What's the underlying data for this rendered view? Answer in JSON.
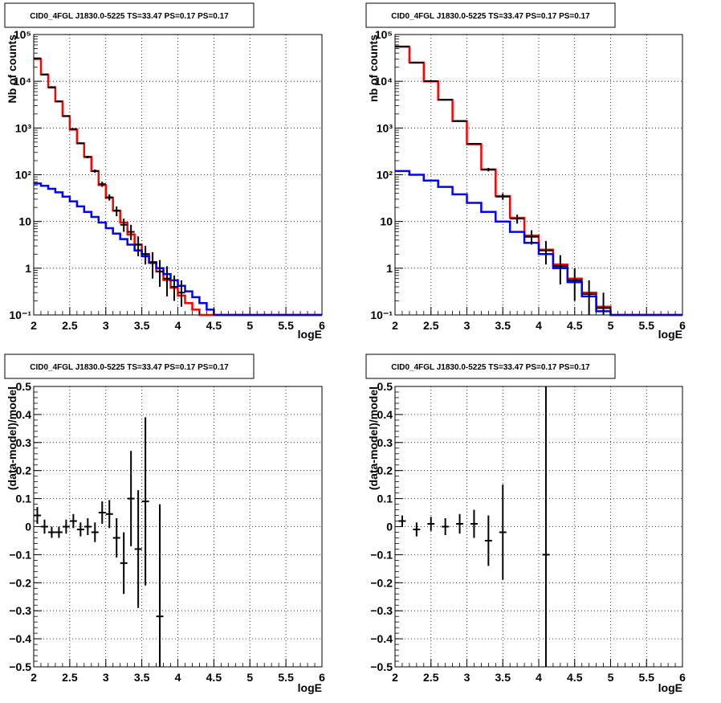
{
  "chart_data": [
    {
      "type": "line",
      "title": "CID0_4FGL J1830.0-5225 TS=33.47 PS=0.17 PS=0.17",
      "xlabel": "logE",
      "ylabel": "Nb of counts",
      "xlim": [
        2,
        6
      ],
      "ylim": [
        0.1,
        100000
      ],
      "yscale": "log",
      "grid": true,
      "xticks": [
        "2",
        "2.5",
        "3",
        "3.5",
        "4",
        "4.5",
        "5",
        "5.5",
        "6"
      ],
      "yticks": [
        "10⁻¹",
        "1",
        "10",
        "10²",
        "10³",
        "10⁴",
        "10⁵"
      ],
      "x_edges": [
        2.0,
        2.1,
        2.2,
        2.3,
        2.4,
        2.5,
        2.6,
        2.7,
        2.8,
        2.9,
        3.0,
        3.1,
        3.2,
        3.3,
        3.4,
        3.5,
        3.6,
        3.7,
        3.8,
        3.9,
        4.0,
        4.1,
        4.2,
        4.3,
        4.4,
        4.5,
        4.6,
        4.7,
        4.8,
        4.9,
        5.0,
        5.1,
        5.2,
        5.3,
        5.4,
        5.5,
        5.6,
        5.7,
        5.8,
        5.9,
        6.0
      ],
      "series": [
        {
          "color": "#ff0000",
          "values": [
            30000,
            14000,
            7500,
            3700,
            1800,
            930,
            470,
            240,
            120,
            60,
            32,
            17,
            9.5,
            5.3,
            3.2,
            2.0,
            1.3,
            0.85,
            0.56,
            0.38,
            0.26,
            0.18,
            0.13,
            0.1,
            0.1,
            0.1,
            0.1,
            0.1,
            0.1,
            0.1,
            0.1,
            0.1,
            0.1,
            0.1,
            0.1,
            0.1,
            0.1,
            0.1,
            0.1,
            0.1
          ]
        },
        {
          "color": "#0000ff",
          "values": [
            65,
            58,
            50,
            42,
            34,
            27,
            21,
            16,
            12.5,
            9.5,
            7.2,
            5.5,
            4.2,
            3.2,
            2.4,
            1.8,
            1.35,
            1.0,
            0.75,
            0.55,
            0.42,
            0.32,
            0.24,
            0.18,
            0.13,
            0.1,
            0.1,
            0.1,
            0.1,
            0.1,
            0.1,
            0.1,
            0.1,
            0.1,
            0.1,
            0.1,
            0.1,
            0.1,
            0.1,
            0.1
          ]
        }
      ],
      "points": {
        "color": "#000000",
        "x": [
          2.05,
          2.15,
          2.25,
          2.35,
          2.45,
          2.55,
          2.65,
          2.75,
          2.85,
          2.95,
          3.05,
          3.15,
          3.25,
          3.35,
          3.45,
          3.55,
          3.65,
          3.75,
          3.85,
          3.95,
          4.05
        ],
        "y": [
          31000,
          14000,
          7300,
          3700,
          1800,
          950,
          470,
          240,
          120,
          63,
          33,
          17,
          8.5,
          6.0,
          3.2,
          2.0,
          1.3,
          0.85,
          0.6,
          0.4,
          0.3
        ],
        "y_lo": [
          30000,
          13800,
          7150,
          3640,
          1760,
          920,
          450,
          225,
          110,
          55,
          28,
          13,
          6.0,
          4.0,
          1.8,
          1.2,
          0.6,
          0.4,
          0.25,
          0.2,
          0.15
        ],
        "y_hi": [
          31200,
          14200,
          7450,
          3760,
          1840,
          980,
          490,
          255,
          130,
          71,
          38,
          21,
          11.5,
          8.5,
          4.8,
          3.0,
          2.2,
          1.5,
          1.1,
          0.7,
          0.55
        ]
      }
    },
    {
      "type": "line",
      "title": "CID0_4FGL J1830.0-5225 TS=33.47 PS=0.17 PS=0.17",
      "xlabel": "logE",
      "ylabel": "nb of counts",
      "xlim": [
        2,
        6
      ],
      "ylim": [
        0.1,
        100000
      ],
      "yscale": "log",
      "grid": true,
      "xticks": [
        "2",
        "2.5",
        "3",
        "3.5",
        "4",
        "4.5",
        "5",
        "5.5",
        "6"
      ],
      "yticks": [
        "10⁻¹",
        "1",
        "10",
        "10²",
        "10³",
        "10⁴",
        "10⁵"
      ],
      "x_edges": [
        2.0,
        2.2,
        2.4,
        2.6,
        2.8,
        3.0,
        3.2,
        3.4,
        3.6,
        3.8,
        4.0,
        4.2,
        4.4,
        4.6,
        4.8,
        5.0,
        5.2,
        5.4,
        5.6,
        5.8,
        6.0
      ],
      "series": [
        {
          "color": "#ff0000",
          "values": [
            55000,
            25000,
            10000,
            4000,
            1400,
            450,
            130,
            35,
            12,
            5.0,
            2.5,
            1.2,
            0.6,
            0.3,
            0.15,
            0.1,
            0.1,
            0.1,
            0.1,
            0.1
          ]
        },
        {
          "color": "#0000ff",
          "values": [
            120,
            100,
            75,
            55,
            38,
            25,
            16,
            10,
            6,
            3.5,
            2.0,
            1.0,
            0.5,
            0.25,
            0.12,
            0.1,
            0.1,
            0.1,
            0.1,
            0.1
          ]
        }
      ],
      "points": {
        "color": "#000000",
        "x": [
          2.1,
          2.3,
          2.5,
          2.7,
          2.9,
          3.1,
          3.3,
          3.5,
          3.7,
          3.9,
          4.1,
          4.3,
          4.5,
          4.7,
          4.9
        ],
        "y": [
          55500,
          25200,
          10100,
          4050,
          1420,
          460,
          128,
          34,
          11.5,
          4.7,
          2.4,
          1.1,
          0.55,
          0.28,
          0.14
        ],
        "y_lo": [
          55000,
          24900,
          9950,
          3980,
          1380,
          440,
          118,
          29,
          9,
          3.2,
          1.2,
          0.45,
          0.2,
          0.1,
          0.1
        ],
        "y_hi": [
          56000,
          25500,
          10250,
          4120,
          1460,
          480,
          140,
          40,
          14,
          6.5,
          3.8,
          1.9,
          1.0,
          0.55,
          0.3
        ]
      }
    },
    {
      "type": "scatter",
      "title": "CID0_4FGL J1830.0-5225 TS=33.47 PS=0.17 PS=0.17",
      "xlabel": "logE",
      "ylabel": "(data-model)/model",
      "xlim": [
        2,
        6
      ],
      "ylim": [
        -0.5,
        0.5
      ],
      "grid": true,
      "xticks": [
        "2",
        "2.5",
        "3",
        "3.5",
        "4",
        "4.5",
        "5",
        "5.5",
        "6"
      ],
      "yticks": [
        "−0.5",
        "−0.4",
        "−0.3",
        "−0.2",
        "−0.1",
        "0",
        "0.1",
        "0.2",
        "0.3",
        "0.4",
        "0.5"
      ],
      "points": {
        "color": "#000000",
        "x": [
          2.05,
          2.15,
          2.25,
          2.35,
          2.45,
          2.55,
          2.65,
          2.75,
          2.85,
          2.95,
          3.05,
          3.15,
          3.25,
          3.35,
          3.45,
          3.55,
          3.75
        ],
        "y": [
          0.04,
          0.0,
          -0.02,
          -0.02,
          0.0,
          0.02,
          -0.01,
          0.0,
          -0.02,
          0.05,
          0.045,
          -0.04,
          -0.13,
          0.1,
          -0.08,
          0.09,
          -0.32
        ],
        "y_err": [
          0.03,
          0.025,
          0.02,
          0.02,
          0.025,
          0.025,
          0.025,
          0.03,
          0.035,
          0.04,
          0.05,
          0.07,
          0.11,
          0.17,
          0.21,
          0.3,
          0.4
        ]
      }
    },
    {
      "type": "scatter",
      "title": "CID0_4FGL J1830.0-5225 TS=33.47 PS=0.17 PS=0.17",
      "xlabel": "logE",
      "ylabel": "(data-model)/model",
      "xlim": [
        2,
        6
      ],
      "ylim": [
        -0.5,
        0.5
      ],
      "grid": true,
      "xticks": [
        "2",
        "2.5",
        "3",
        "3.5",
        "4",
        "4.5",
        "5",
        "5.5",
        "6"
      ],
      "yticks": [
        "−0.5",
        "−0.4",
        "−0.3",
        "−0.2",
        "−0.1",
        "0",
        "0.1",
        "0.2",
        "0.3",
        "0.4",
        "0.5"
      ],
      "points": {
        "color": "#000000",
        "x": [
          2.1,
          2.3,
          2.5,
          2.7,
          2.9,
          3.1,
          3.3,
          3.5,
          4.1
        ],
        "y": [
          0.02,
          -0.01,
          0.01,
          0.0,
          0.01,
          0.01,
          -0.05,
          -0.02,
          -0.1
        ],
        "y_err": [
          0.02,
          0.025,
          0.025,
          0.03,
          0.035,
          0.05,
          0.09,
          0.17,
          0.65
        ]
      }
    }
  ]
}
